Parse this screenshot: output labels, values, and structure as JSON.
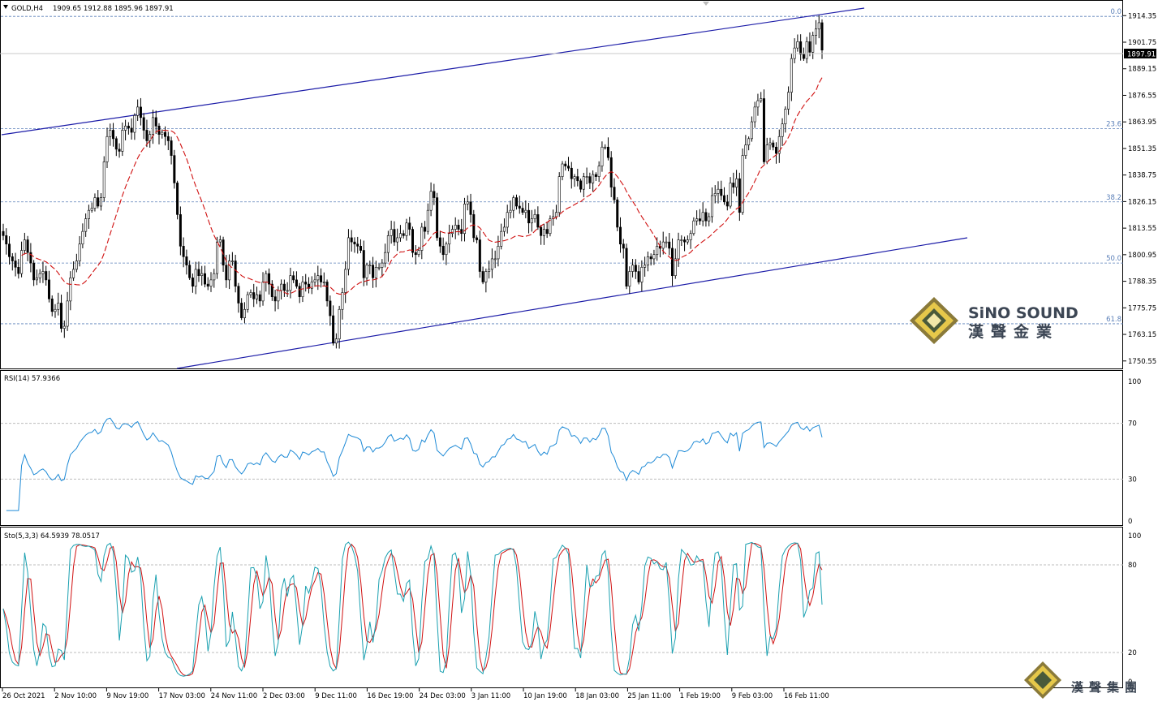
{
  "chart_data": [
    {
      "type": "candlestick",
      "symbol": "GOLD,H4",
      "ohlc_label": "1909.65 1912.88 1895.96 1897.91",
      "current_price": "1897.91",
      "ylim": [
        1747.0,
        1921.0
      ],
      "y_ticks": [
        "1914.35",
        "1901.75",
        "1889.15",
        "1876.55",
        "1863.95",
        "1851.35",
        "1838.75",
        "1826.15",
        "1813.55",
        "1800.95",
        "1788.35",
        "1775.75",
        "1763.15",
        "1750.55"
      ],
      "x_ticks": [
        "26 Oct 2021",
        "2 Nov 10:00",
        "9 Nov 19:00",
        "17 Nov 03:00",
        "24 Nov 11:00",
        "2 Dec 03:00",
        "9 Dec 11:00",
        "16 Dec 19:00",
        "24 Dec 03:00",
        "3 Jan 11:00",
        "10 Jan 19:00",
        "18 Jan 03:00",
        "25 Jan 11:00",
        "1 Feb 19:00",
        "9 Feb 03:00",
        "16 Feb 11:00"
      ],
      "fib_levels": [
        {
          "label": "0.0",
          "value": 1914.0
        },
        {
          "label": "23.6",
          "value": 1860.8
        },
        {
          "label": "38.2",
          "value": 1826.0
        },
        {
          "label": "50.0",
          "value": 1797.0
        },
        {
          "label": "61.8",
          "value": 1768.2
        }
      ],
      "closes": [
        1810,
        1806,
        1800,
        1798,
        1795,
        1792,
        1803,
        1808,
        1802,
        1797,
        1789,
        1790,
        1792,
        1793,
        1789,
        1780,
        1774,
        1775,
        1778,
        1766,
        1767,
        1779,
        1790,
        1794,
        1798,
        1806,
        1812,
        1818,
        1822,
        1823,
        1828,
        1824,
        1828,
        1845,
        1857,
        1860,
        1856,
        1851,
        1850,
        1860,
        1862,
        1861,
        1859,
        1867,
        1871,
        1866,
        1860,
        1855,
        1858,
        1866,
        1862,
        1858,
        1859,
        1857,
        1855,
        1848,
        1835,
        1820,
        1805,
        1800,
        1796,
        1790,
        1786,
        1794,
        1791,
        1792,
        1787,
        1786,
        1789,
        1792,
        1807,
        1808,
        1796,
        1789,
        1798,
        1798,
        1786,
        1778,
        1771,
        1775,
        1782,
        1783,
        1780,
        1782,
        1779,
        1788,
        1792,
        1787,
        1781,
        1779,
        1784,
        1787,
        1784,
        1784,
        1791,
        1789,
        1786,
        1781,
        1788,
        1787,
        1785,
        1788,
        1789,
        1791,
        1788,
        1788,
        1779,
        1772,
        1759,
        1761,
        1775,
        1783,
        1794,
        1809,
        1807,
        1806,
        1805,
        1803,
        1790,
        1796,
        1796,
        1790,
        1795,
        1795,
        1797,
        1802,
        1810,
        1813,
        1807,
        1809,
        1811,
        1810,
        1816,
        1813,
        1802,
        1801,
        1803,
        1814,
        1812,
        1822,
        1831,
        1828,
        1809,
        1805,
        1801,
        1806,
        1811,
        1813,
        1815,
        1813,
        1811,
        1825,
        1826,
        1820,
        1809,
        1808,
        1793,
        1788,
        1793,
        1794,
        1799,
        1799,
        1805,
        1812,
        1814,
        1821,
        1822,
        1828,
        1824,
        1823,
        1821,
        1822,
        1816,
        1818,
        1820,
        1814,
        1810,
        1813,
        1811,
        1818,
        1819,
        1821,
        1838,
        1844,
        1843,
        1842,
        1837,
        1838,
        1836,
        1832,
        1838,
        1838,
        1835,
        1839,
        1838,
        1843,
        1852,
        1852,
        1847,
        1833,
        1827,
        1814,
        1806,
        1804,
        1786,
        1793,
        1796,
        1793,
        1788,
        1795,
        1796,
        1800,
        1799,
        1801,
        1805,
        1804,
        1807,
        1807,
        1804,
        1791,
        1799,
        1808,
        1808,
        1807,
        1808,
        1811,
        1817,
        1818,
        1817,
        1821,
        1817,
        1819,
        1829,
        1830,
        1832,
        1829,
        1826,
        1824,
        1835,
        1833,
        1837,
        1821,
        1848,
        1853,
        1856,
        1864,
        1871,
        1874,
        1875,
        1845,
        1853,
        1854,
        1852,
        1849,
        1857,
        1863,
        1870,
        1878,
        1894,
        1899,
        1902,
        1896,
        1894,
        1902,
        1897,
        1905,
        1908,
        1911,
        1898
      ]
    },
    {
      "type": "line",
      "title": "RSI(14) 57.9366",
      "ylim": [
        0,
        100
      ],
      "y_ticks": [
        "100",
        "70",
        "30",
        "0"
      ],
      "levels": [
        70,
        30
      ]
    },
    {
      "type": "line",
      "title": "Sto(5,3,3) 64.5939 78.0517",
      "ylim": [
        0,
        100
      ],
      "y_ticks": [
        "100",
        "80",
        "20",
        "0"
      ],
      "levels": [
        80,
        20
      ]
    }
  ],
  "logo": {
    "en": "SiNO SOUND",
    "cn": "漢聲金業",
    "cn_small": "漢聲集團"
  },
  "colors": {
    "candle": "#000000",
    "ma": "#d01010",
    "channel": "#1c1ca8",
    "fib": "#5a7fb8",
    "rsi": "#1e8ad6",
    "sto_main": "#1aa0b0",
    "sto_signal": "#d01010",
    "current_tag": "#000000"
  }
}
